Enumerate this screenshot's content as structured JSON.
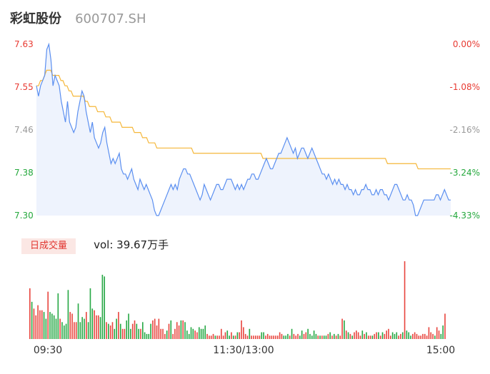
{
  "header": {
    "name": "彩虹股份",
    "code": "600707.SH"
  },
  "volume_panel": {
    "label": "日成交量",
    "vol_text": "vol: 39.67万手"
  },
  "colors": {
    "price_line": "#5b8ff0",
    "price_fill": "#eef3fd",
    "avg_line": "#f5b73a",
    "up": "#e83a32",
    "down": "#24a83c",
    "neutral": "#999999",
    "volume_up": "#e8463f",
    "volume_down": "#27a845"
  },
  "chart_data": [
    {
      "type": "line",
      "title": "彩虹股份 600707.SH",
      "x_tick_labels": [
        "09:30",
        "11:30/13:00",
        "15:00"
      ],
      "y_left_ticks": [
        "7.63",
        "7.55",
        "7.46",
        "7.38",
        "7.30"
      ],
      "y_right_ticks": [
        "0.00%",
        "-1.08%",
        "-2.16%",
        "-3.24%",
        "-4.33%"
      ],
      "ylim": [
        7.3,
        7.63
      ],
      "grid": false,
      "series": [
        {
          "name": "price",
          "values": [
            7.55,
            7.53,
            7.55,
            7.56,
            7.57,
            7.62,
            7.63,
            7.6,
            7.55,
            7.57,
            7.56,
            7.55,
            7.52,
            7.5,
            7.48,
            7.52,
            7.48,
            7.47,
            7.46,
            7.47,
            7.5,
            7.52,
            7.54,
            7.53,
            7.5,
            7.48,
            7.46,
            7.48,
            7.45,
            7.44,
            7.43,
            7.44,
            7.46,
            7.47,
            7.44,
            7.42,
            7.4,
            7.41,
            7.4,
            7.41,
            7.42,
            7.39,
            7.38,
            7.38,
            7.37,
            7.38,
            7.39,
            7.37,
            7.36,
            7.35,
            7.37,
            7.36,
            7.35,
            7.36,
            7.35,
            7.34,
            7.33,
            7.31,
            7.3,
            7.3,
            7.31,
            7.32,
            7.33,
            7.34,
            7.35,
            7.36,
            7.35,
            7.36,
            7.35,
            7.37,
            7.38,
            7.39,
            7.39,
            7.38,
            7.38,
            7.37,
            7.36,
            7.35,
            7.34,
            7.33,
            7.34,
            7.36,
            7.35,
            7.34,
            7.33,
            7.34,
            7.35,
            7.36,
            7.36,
            7.35,
            7.35,
            7.36,
            7.37,
            7.37,
            7.37,
            7.36,
            7.35,
            7.36,
            7.35,
            7.36,
            7.35,
            7.36,
            7.37,
            7.37,
            7.38,
            7.38,
            7.37,
            7.37,
            7.38,
            7.39,
            7.4,
            7.41,
            7.4,
            7.39,
            7.39,
            7.4,
            7.41,
            7.42,
            7.42,
            7.43,
            7.44,
            7.45,
            7.44,
            7.43,
            7.42,
            7.43,
            7.41,
            7.42,
            7.43,
            7.43,
            7.42,
            7.41,
            7.42,
            7.43,
            7.42,
            7.41,
            7.4,
            7.39,
            7.38,
            7.38,
            7.37,
            7.38,
            7.37,
            7.36,
            7.37,
            7.36,
            7.37,
            7.36,
            7.36,
            7.35,
            7.36,
            7.35,
            7.35,
            7.34,
            7.35,
            7.34,
            7.34,
            7.35,
            7.35,
            7.36,
            7.35,
            7.35,
            7.34,
            7.34,
            7.35,
            7.34,
            7.35,
            7.35,
            7.34,
            7.34,
            7.33,
            7.34,
            7.35,
            7.36,
            7.36,
            7.35,
            7.34,
            7.33,
            7.33,
            7.34,
            7.33,
            7.33,
            7.32,
            7.3,
            7.3,
            7.31,
            7.32,
            7.33,
            7.33,
            7.33,
            7.33,
            7.33,
            7.33,
            7.34,
            7.34,
            7.33,
            7.34,
            7.35,
            7.34,
            7.33,
            7.33
          ]
        },
        {
          "name": "average",
          "values": [
            7.55,
            7.55,
            7.56,
            7.56,
            7.57,
            7.58,
            7.58,
            7.58,
            7.57,
            7.57,
            7.57,
            7.57,
            7.56,
            7.56,
            7.55,
            7.55,
            7.54,
            7.54,
            7.53,
            7.53,
            7.53,
            7.53,
            7.53,
            7.53,
            7.52,
            7.52,
            7.51,
            7.51,
            7.51,
            7.51,
            7.5,
            7.5,
            7.5,
            7.5,
            7.49,
            7.49,
            7.49,
            7.48,
            7.48,
            7.48,
            7.48,
            7.48,
            7.47,
            7.47,
            7.47,
            7.47,
            7.47,
            7.47,
            7.46,
            7.46,
            7.46,
            7.46,
            7.45,
            7.45,
            7.45,
            7.44,
            7.44,
            7.44,
            7.44,
            7.43,
            7.43,
            7.43,
            7.43,
            7.43,
            7.43,
            7.43,
            7.43,
            7.43,
            7.43,
            7.43,
            7.43,
            7.43,
            7.43,
            7.43,
            7.43,
            7.43,
            7.43,
            7.42,
            7.42,
            7.42,
            7.42,
            7.42,
            7.42,
            7.42,
            7.42,
            7.42,
            7.42,
            7.42,
            7.42,
            7.42,
            7.42,
            7.42,
            7.42,
            7.42,
            7.42,
            7.42,
            7.42,
            7.42,
            7.42,
            7.42,
            7.42,
            7.42,
            7.42,
            7.42,
            7.42,
            7.42,
            7.42,
            7.42,
            7.42,
            7.42,
            7.42,
            7.41,
            7.41,
            7.41,
            7.41,
            7.41,
            7.41,
            7.41,
            7.41,
            7.41,
            7.41,
            7.41,
            7.41,
            7.41,
            7.41,
            7.41,
            7.41,
            7.41,
            7.41,
            7.41,
            7.41,
            7.41,
            7.41,
            7.41,
            7.41,
            7.41,
            7.41,
            7.41,
            7.41,
            7.41,
            7.41,
            7.41,
            7.41,
            7.41,
            7.41,
            7.41,
            7.41,
            7.41,
            7.41,
            7.41,
            7.41,
            7.41,
            7.41,
            7.41,
            7.41,
            7.41,
            7.41,
            7.41,
            7.41,
            7.41,
            7.41,
            7.41,
            7.41,
            7.41,
            7.41,
            7.41,
            7.41,
            7.41,
            7.41,
            7.41,
            7.41,
            7.41,
            7.4,
            7.4,
            7.4,
            7.4,
            7.4,
            7.4,
            7.4,
            7.4,
            7.4,
            7.4,
            7.4,
            7.4,
            7.4,
            7.4,
            7.4,
            7.39,
            7.39,
            7.39,
            7.39,
            7.39,
            7.39,
            7.39,
            7.39,
            7.39,
            7.39,
            7.39,
            7.39,
            7.39,
            7.39,
            7.39,
            7.39,
            7.39
          ]
        }
      ]
    },
    {
      "type": "bar",
      "title": "日成交量",
      "series": [
        {
          "name": "volume",
          "values": [
            30,
            22,
            18,
            14,
            20,
            17,
            17,
            16,
            12,
            28,
            16,
            15,
            14,
            12,
            27,
            12,
            10,
            8,
            9,
            29,
            16,
            15,
            10,
            10,
            21,
            10,
            13,
            12,
            16,
            10,
            30,
            18,
            17,
            14,
            14,
            13,
            38,
            37,
            10,
            9,
            8,
            10,
            6,
            12,
            16,
            9,
            6,
            6,
            11,
            15,
            6,
            9,
            11,
            9,
            6,
            6,
            10,
            4,
            3,
            3,
            9,
            11,
            12,
            8,
            12,
            6,
            6,
            3,
            5,
            9,
            11,
            3,
            6,
            10,
            8,
            11,
            11,
            10,
            5,
            3,
            7,
            6,
            5,
            4,
            7,
            6,
            6,
            8,
            3,
            2,
            2,
            3,
            2,
            2,
            2,
            6,
            2,
            4,
            5,
            2,
            4,
            2,
            2,
            4,
            4,
            11,
            7,
            3,
            2,
            6,
            2,
            2,
            2,
            2,
            2,
            4,
            4,
            2,
            3,
            2,
            2,
            2,
            2,
            2,
            4,
            3,
            2,
            2,
            3,
            2,
            6,
            3,
            2,
            3,
            2,
            5,
            3,
            4,
            6,
            3,
            2,
            5,
            3,
            2,
            2,
            2,
            2,
            2,
            3,
            4,
            2,
            3,
            2,
            3,
            2,
            12,
            11,
            5,
            4,
            3,
            2,
            4,
            5,
            4,
            2,
            5,
            3,
            4,
            2,
            2,
            2,
            3,
            4,
            4,
            2,
            4,
            3,
            5,
            6,
            2,
            4,
            3,
            4,
            2,
            3,
            4,
            46,
            5,
            4,
            2,
            3,
            4,
            3,
            2,
            2,
            3,
            3,
            2,
            7,
            4,
            3,
            2,
            7,
            5,
            3,
            8,
            15
          ]
        }
      ]
    }
  ]
}
